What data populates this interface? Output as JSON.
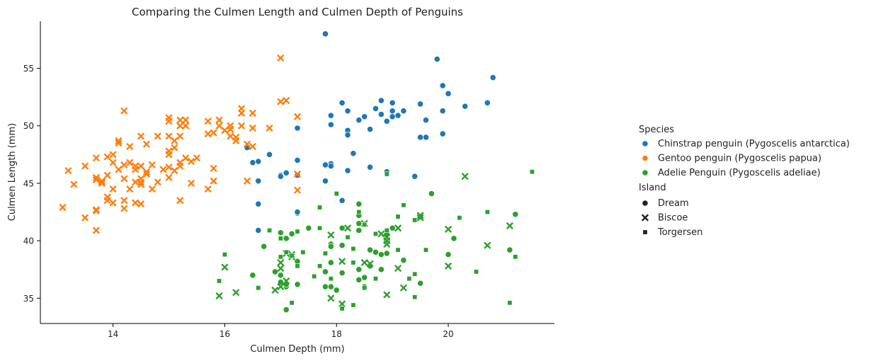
{
  "chart_data": {
    "type": "scatter",
    "title": "Comparing the Culmen Length and Culmen Depth of Penguins",
    "xlabel": "Culmen Depth (mm)",
    "ylabel": "Culmen Length (mm)",
    "xlim": [
      12.7,
      21.9
    ],
    "ylim": [
      32.8,
      59.1
    ],
    "xticks": [
      14,
      16,
      18,
      20
    ],
    "yticks": [
      35,
      40,
      45,
      50,
      55
    ],
    "grid": false,
    "legend": {
      "placement": "right",
      "hue_title": "Species",
      "style_title": "Island",
      "species": [
        {
          "name": "Chinstrap penguin (Pygoscelis antarctica)",
          "color": "#1f77b4"
        },
        {
          "name": "Gentoo penguin (Pygoscelis papua)",
          "color": "#ff7f0e"
        },
        {
          "name": "Adelie Penguin (Pygoscelis adeliae)",
          "color": "#2ca02c"
        }
      ],
      "islands": [
        {
          "name": "Dream",
          "marker": "circle"
        },
        {
          "name": "Biscoe",
          "marker": "x"
        },
        {
          "name": "Torgersen",
          "marker": "square"
        }
      ]
    },
    "series": [
      {
        "species": "Chinstrap penguin (Pygoscelis antarctica)",
        "island": "Dream",
        "points": [
          [
            17.8,
            58.0
          ],
          [
            19.8,
            55.8
          ],
          [
            20.8,
            54.2
          ],
          [
            19.9,
            53.5
          ],
          [
            20.0,
            52.8
          ],
          [
            18.8,
            52.2
          ],
          [
            19.0,
            52.0
          ],
          [
            18.1,
            52.0
          ],
          [
            20.7,
            52.0
          ],
          [
            19.5,
            51.9
          ],
          [
            20.3,
            51.7
          ],
          [
            18.2,
            51.3
          ],
          [
            19.2,
            51.3
          ],
          [
            19.0,
            51.3
          ],
          [
            19.9,
            51.3
          ],
          [
            18.7,
            51.5
          ],
          [
            17.9,
            50.9
          ],
          [
            18.8,
            51.0
          ],
          [
            19.0,
            50.8
          ],
          [
            19.1,
            50.9
          ],
          [
            18.4,
            50.5
          ],
          [
            18.5,
            50.8
          ],
          [
            18.9,
            50.4
          ],
          [
            19.6,
            50.5
          ],
          [
            18.6,
            49.7
          ],
          [
            18.2,
            49.6
          ],
          [
            18.2,
            49.2
          ],
          [
            19.5,
            49.0
          ],
          [
            19.6,
            49.0
          ],
          [
            19.9,
            49.3
          ],
          [
            17.9,
            50.1
          ],
          [
            17.3,
            49.8
          ],
          [
            16.8,
            47.5
          ],
          [
            18.3,
            47.6
          ],
          [
            16.4,
            48.1
          ],
          [
            17.3,
            47.0
          ],
          [
            16.6,
            46.9
          ],
          [
            16.5,
            46.8
          ],
          [
            18.6,
            46.4
          ],
          [
            18.2,
            46.1
          ],
          [
            18.9,
            46.0
          ],
          [
            17.0,
            45.7
          ],
          [
            17.0,
            45.6
          ],
          [
            17.1,
            45.9
          ],
          [
            17.3,
            45.7
          ],
          [
            19.4,
            45.6
          ],
          [
            16.6,
            45.2
          ],
          [
            17.8,
            45.2
          ],
          [
            18.1,
            43.5
          ],
          [
            16.6,
            43.2
          ],
          [
            17.9,
            46.7
          ],
          [
            17.9,
            46.5
          ],
          [
            17.8,
            46.6
          ],
          [
            17.3,
            42.4
          ],
          [
            17.3,
            42.5
          ],
          [
            16.6,
            40.9
          ]
        ]
      },
      {
        "species": "Gentoo penguin (Pygoscelis papua)",
        "island": "Biscoe",
        "points": [
          [
            17.0,
            55.9
          ],
          [
            17.1,
            52.2
          ],
          [
            17.0,
            52.1
          ],
          [
            14.2,
            51.3
          ],
          [
            16.3,
            51.5
          ],
          [
            16.3,
            51.1
          ],
          [
            16.5,
            51.1
          ],
          [
            15.0,
            50.7
          ],
          [
            15.2,
            50.5
          ],
          [
            15.3,
            50.5
          ],
          [
            15.7,
            50.4
          ],
          [
            15.9,
            50.5
          ],
          [
            15.0,
            50.4
          ],
          [
            15.2,
            50.0
          ],
          [
            15.3,
            50.0
          ],
          [
            16.3,
            50.0
          ],
          [
            16.1,
            50.0
          ],
          [
            15.9,
            50.0
          ],
          [
            16.8,
            49.8
          ],
          [
            16.1,
            49.7
          ],
          [
            15.0,
            49.1
          ],
          [
            15.8,
            49.4
          ],
          [
            15.7,
            49.3
          ],
          [
            16.0,
            49.6
          ],
          [
            15.1,
            48.7
          ],
          [
            14.8,
            49.1
          ],
          [
            14.5,
            49.1
          ],
          [
            15.2,
            49.1
          ],
          [
            16.1,
            49.1
          ],
          [
            16.2,
            48.7
          ],
          [
            16.4,
            48.4
          ],
          [
            16.2,
            49.0
          ],
          [
            14.1,
            48.7
          ],
          [
            14.1,
            48.5
          ],
          [
            14.6,
            48.4
          ],
          [
            15.1,
            48.1
          ],
          [
            15.0,
            47.8
          ],
          [
            15.0,
            47.5
          ],
          [
            14.3,
            48.2
          ],
          [
            16.5,
            48.2
          ],
          [
            14.1,
            46.2
          ],
          [
            14.0,
            47.5
          ],
          [
            13.9,
            47.3
          ],
          [
            13.7,
            47.2
          ],
          [
            14.0,
            46.8
          ],
          [
            14.2,
            46.6
          ],
          [
            14.3,
            46.8
          ],
          [
            14.4,
            46.5
          ],
          [
            14.4,
            46.2
          ],
          [
            14.5,
            46.5
          ],
          [
            14.6,
            45.8
          ],
          [
            14.6,
            46.0
          ],
          [
            14.5,
            45.4
          ],
          [
            14.7,
            46.6
          ],
          [
            14.9,
            46.2
          ],
          [
            15.0,
            46.4
          ],
          [
            15.1,
            46.1
          ],
          [
            15.2,
            46.5
          ],
          [
            15.2,
            46.8
          ],
          [
            15.3,
            47.2
          ],
          [
            15.5,
            47.2
          ],
          [
            15.4,
            46.9
          ],
          [
            15.8,
            46.3
          ],
          [
            13.5,
            46.5
          ],
          [
            13.2,
            46.1
          ],
          [
            13.8,
            45.2
          ],
          [
            13.8,
            45.1
          ],
          [
            13.9,
            45.7
          ],
          [
            13.7,
            45.5
          ],
          [
            13.7,
            45.3
          ],
          [
            13.8,
            45.0
          ],
          [
            14.0,
            44.5
          ],
          [
            14.2,
            45.4
          ],
          [
            14.3,
            44.5
          ],
          [
            14.4,
            45.1
          ],
          [
            14.5,
            45.1
          ],
          [
            14.5,
            44.9
          ],
          [
            14.7,
            44.5
          ],
          [
            14.8,
            45.1
          ],
          [
            15.0,
            45.5
          ],
          [
            15.4,
            45.0
          ],
          [
            15.8,
            45.2
          ],
          [
            16.4,
            45.2
          ],
          [
            17.3,
            45.8
          ],
          [
            17.3,
            44.4
          ],
          [
            13.3,
            44.9
          ],
          [
            13.9,
            43.8
          ],
          [
            13.9,
            43.5
          ],
          [
            14.0,
            43.3
          ],
          [
            14.2,
            43.5
          ],
          [
            14.2,
            42.8
          ],
          [
            14.4,
            43.3
          ],
          [
            14.5,
            43.2
          ],
          [
            15.2,
            43.5
          ],
          [
            15.7,
            44.5
          ],
          [
            13.1,
            42.9
          ],
          [
            13.5,
            42.0
          ],
          [
            13.7,
            42.7
          ],
          [
            13.7,
            42.6
          ],
          [
            13.7,
            40.9
          ],
          [
            17.3,
            50.8
          ],
          [
            16.5,
            49.8
          ]
        ]
      },
      {
        "species": "Adelie Penguin (Pygoscelis adeliae)",
        "island": "Dream",
        "points": [
          [
            19.7,
            44.1
          ],
          [
            18.4,
            43.2
          ],
          [
            18.4,
            42.2
          ],
          [
            21.2,
            42.3
          ],
          [
            18.4,
            41.5
          ],
          [
            17.5,
            41.1
          ],
          [
            18.1,
            41.1
          ],
          [
            18.9,
            40.8
          ],
          [
            19.0,
            41.1
          ],
          [
            18.4,
            40.9
          ],
          [
            17.0,
            40.7
          ],
          [
            17.2,
            40.6
          ],
          [
            17.1,
            40.2
          ],
          [
            20.1,
            40.2
          ],
          [
            17.9,
            39.7
          ],
          [
            17.9,
            39.5
          ],
          [
            18.1,
            39.6
          ],
          [
            18.9,
            40.6
          ],
          [
            18.6,
            39.2
          ],
          [
            18.9,
            38.9
          ],
          [
            18.7,
            39.0
          ],
          [
            19.2,
            38.3
          ],
          [
            16.7,
            39.5
          ],
          [
            17.9,
            38.1
          ],
          [
            18.6,
            37.8
          ],
          [
            18.4,
            37.5
          ],
          [
            18.8,
            37.5
          ],
          [
            17.8,
            37.3
          ],
          [
            17.3,
            38.2
          ],
          [
            16.9,
            37.3
          ],
          [
            17.0,
            37.0
          ],
          [
            16.5,
            37.0
          ],
          [
            18.1,
            37.2
          ],
          [
            18.4,
            36.6
          ],
          [
            17.0,
            36.4
          ],
          [
            17.1,
            36.0
          ],
          [
            17.1,
            36.2
          ],
          [
            17.3,
            36.2
          ],
          [
            17.8,
            36.0
          ],
          [
            17.9,
            36.0
          ],
          [
            18.0,
            35.7
          ],
          [
            18.5,
            36.8
          ],
          [
            18.5,
            36.0
          ],
          [
            19.5,
            36.3
          ],
          [
            18.8,
            38.8
          ],
          [
            17.1,
            34.0
          ],
          [
            20.0,
            38.8
          ],
          [
            21.1,
            39.2
          ],
          [
            17.1,
            40.2
          ]
        ]
      },
      {
        "species": "Adelie Penguin (Pygoscelis adeliae)",
        "island": "Biscoe",
        "points": [
          [
            20.3,
            45.6
          ],
          [
            19.5,
            42.2
          ],
          [
            19.5,
            42.0
          ],
          [
            18.2,
            41.1
          ],
          [
            18.8,
            40.6
          ],
          [
            19.1,
            41.1
          ],
          [
            20.0,
            41.0
          ],
          [
            17.9,
            40.5
          ],
          [
            18.9,
            40.3
          ],
          [
            18.9,
            40.0
          ],
          [
            18.9,
            39.7
          ],
          [
            17.2,
            38.8
          ],
          [
            17.2,
            38.6
          ],
          [
            18.5,
            38.1
          ],
          [
            18.6,
            38.0
          ],
          [
            18.1,
            38.2
          ],
          [
            17.1,
            38.9
          ],
          [
            17.0,
            38.1
          ],
          [
            17.0,
            37.6
          ],
          [
            19.1,
            37.6
          ],
          [
            20.0,
            37.8
          ],
          [
            20.7,
            39.6
          ],
          [
            21.1,
            41.3
          ],
          [
            17.1,
            36.5
          ],
          [
            16.9,
            35.7
          ],
          [
            17.0,
            36.0
          ],
          [
            17.9,
            35.0
          ],
          [
            18.1,
            34.5
          ],
          [
            19.2,
            35.9
          ],
          [
            16.0,
            37.7
          ],
          [
            16.2,
            35.5
          ],
          [
            18.9,
            35.3
          ],
          [
            15.9,
            35.2
          ],
          [
            18.5,
            41.5
          ]
        ]
      },
      {
        "species": "Adelie Penguin (Pygoscelis adeliae)",
        "island": "Torgersen",
        "points": [
          [
            21.5,
            46.0
          ],
          [
            18.9,
            45.8
          ],
          [
            18.0,
            44.1
          ],
          [
            19.2,
            43.1
          ],
          [
            17.7,
            42.9
          ],
          [
            18.4,
            42.5
          ],
          [
            19.1,
            42.1
          ],
          [
            20.2,
            42.0
          ],
          [
            19.4,
            41.8
          ],
          [
            18.5,
            41.4
          ],
          [
            17.7,
            41.1
          ],
          [
            18.2,
            40.3
          ],
          [
            18.9,
            40.9
          ],
          [
            17.3,
            40.8
          ],
          [
            16.8,
            40.9
          ],
          [
            17.0,
            40.2
          ],
          [
            18.7,
            40.6
          ],
          [
            19.1,
            39.2
          ],
          [
            19.6,
            39.2
          ],
          [
            18.3,
            39.3
          ],
          [
            17.8,
            38.9
          ],
          [
            17.2,
            38.7
          ],
          [
            17.0,
            38.6
          ],
          [
            17.4,
            39.0
          ],
          [
            16.6,
            35.9
          ],
          [
            18.5,
            35.9
          ],
          [
            17.9,
            36.7
          ],
          [
            19.3,
            36.7
          ],
          [
            19.4,
            35.1
          ],
          [
            20.5,
            37.3
          ],
          [
            17.3,
            37.8
          ],
          [
            17.1,
            39.0
          ],
          [
            17.7,
            37.8
          ],
          [
            18.3,
            38.1
          ],
          [
            18.7,
            36.7
          ],
          [
            18.1,
            34.1
          ],
          [
            18.3,
            34.4
          ],
          [
            17.2,
            34.6
          ],
          [
            21.1,
            34.6
          ],
          [
            20.7,
            42.5
          ],
          [
            21.2,
            38.6
          ],
          [
            19.4,
            37.1
          ],
          [
            16.0,
            38.8
          ],
          [
            15.9,
            36.5
          ],
          [
            17.6,
            36.9
          ]
        ]
      }
    ]
  }
}
